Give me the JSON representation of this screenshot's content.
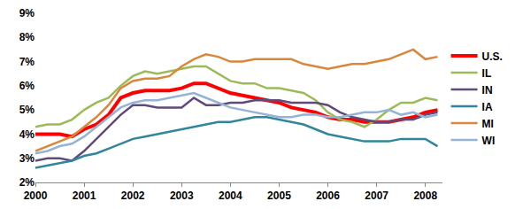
{
  "chart_data": {
    "type": "line",
    "x": [
      2000,
      2000.25,
      2000.5,
      2000.75,
      2001,
      2001.25,
      2001.5,
      2001.75,
      2002,
      2002.25,
      2002.5,
      2002.75,
      2003,
      2003.25,
      2003.5,
      2003.75,
      2004,
      2004.25,
      2004.5,
      2004.75,
      2005,
      2005.25,
      2005.5,
      2005.75,
      2006,
      2006.25,
      2006.5,
      2006.75,
      2007,
      2007.25,
      2007.5,
      2007.75,
      2008,
      2008.25
    ],
    "xlim": [
      2000,
      2008.35
    ],
    "xticks": [
      2000,
      2001,
      2002,
      2003,
      2004,
      2005,
      2006,
      2007,
      2008
    ],
    "ylim": [
      2,
      9
    ],
    "yticks": [
      {
        "value": 2,
        "label": "2%"
      },
      {
        "value": 3,
        "label": "3%"
      },
      {
        "value": 4,
        "label": "4%"
      },
      {
        "value": 5,
        "label": "5%"
      },
      {
        "value": 6,
        "label": "6%"
      },
      {
        "value": 7,
        "label": "7%"
      },
      {
        "value": 8,
        "label": "8%"
      },
      {
        "value": 9,
        "label": "9%"
      }
    ],
    "grid": false,
    "legend": "right",
    "series": [
      {
        "name": "U.S.",
        "color": "#ff0000",
        "values": [
          4.0,
          4.0,
          4.0,
          3.9,
          4.2,
          4.4,
          4.8,
          5.5,
          5.7,
          5.8,
          5.8,
          5.8,
          5.9,
          6.1,
          6.1,
          5.9,
          5.7,
          5.6,
          5.5,
          5.4,
          5.3,
          5.1,
          5.0,
          4.9,
          4.7,
          4.6,
          4.6,
          4.5,
          4.5,
          4.5,
          4.6,
          4.7,
          4.9,
          5.0
        ]
      },
      {
        "name": "IL",
        "color": "#9bbb59",
        "values": [
          4.3,
          4.4,
          4.4,
          4.6,
          5.0,
          5.3,
          5.5,
          6.0,
          6.4,
          6.6,
          6.5,
          6.6,
          6.7,
          6.8,
          6.8,
          6.5,
          6.2,
          6.1,
          6.1,
          5.9,
          5.9,
          5.8,
          5.7,
          5.4,
          4.9,
          4.6,
          4.5,
          4.3,
          4.6,
          5.0,
          5.3,
          5.3,
          5.5,
          5.4
        ]
      },
      {
        "name": "IN",
        "color": "#604a7b",
        "values": [
          2.9,
          3.0,
          3.0,
          2.9,
          3.3,
          3.8,
          4.3,
          4.8,
          5.2,
          5.2,
          5.1,
          5.1,
          5.1,
          5.5,
          5.2,
          5.2,
          5.3,
          5.3,
          5.4,
          5.4,
          5.4,
          5.3,
          5.3,
          5.3,
          5.2,
          4.9,
          4.7,
          4.6,
          4.5,
          4.5,
          4.6,
          4.6,
          4.8,
          4.9
        ]
      },
      {
        "name": "IA",
        "color": "#31859c",
        "values": [
          2.6,
          2.7,
          2.8,
          2.9,
          3.1,
          3.2,
          3.4,
          3.6,
          3.8,
          3.9,
          4.0,
          4.1,
          4.2,
          4.3,
          4.4,
          4.5,
          4.5,
          4.6,
          4.7,
          4.7,
          4.6,
          4.5,
          4.4,
          4.2,
          4.0,
          3.9,
          3.8,
          3.7,
          3.7,
          3.7,
          3.8,
          3.8,
          3.8,
          3.5
        ]
      },
      {
        "name": "MI",
        "color": "#d9873b",
        "values": [
          3.3,
          3.5,
          3.7,
          3.9,
          4.3,
          4.7,
          5.2,
          5.9,
          6.2,
          6.3,
          6.3,
          6.4,
          6.8,
          7.1,
          7.3,
          7.2,
          7.0,
          7.0,
          7.1,
          7.1,
          7.1,
          7.1,
          6.9,
          6.8,
          6.7,
          6.8,
          6.9,
          6.9,
          7.0,
          7.1,
          7.3,
          7.5,
          7.1,
          7.2
        ]
      },
      {
        "name": "WI",
        "color": "#95b3d7",
        "values": [
          3.2,
          3.3,
          3.5,
          3.6,
          3.9,
          4.3,
          4.7,
          5.1,
          5.3,
          5.4,
          5.4,
          5.5,
          5.6,
          5.7,
          5.5,
          5.3,
          5.1,
          5.0,
          4.9,
          4.8,
          4.7,
          4.7,
          4.8,
          4.8,
          4.7,
          4.7,
          4.8,
          4.9,
          4.9,
          5.0,
          4.8,
          4.9,
          4.7,
          4.8
        ]
      }
    ]
  }
}
